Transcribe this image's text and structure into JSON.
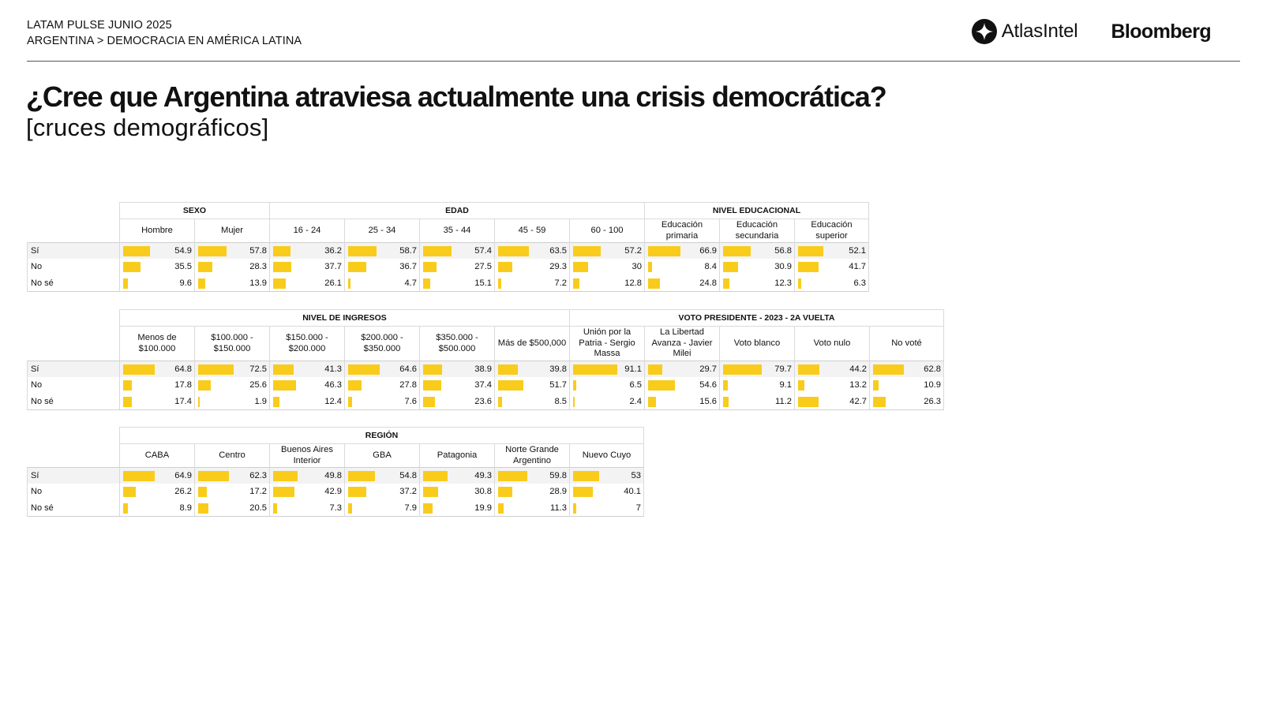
{
  "header": {
    "line1": "LATAM PULSE JUNIO 2025",
    "line2": "ARGENTINA > DEMOCRACIA EN AMÉRICA LATINA",
    "logo_atlas": "AtlasIntel",
    "logo_bloomberg": "Bloomberg"
  },
  "title": "¿Cree que Argentina atraviesa actualmente una crisis democrática?",
  "subtitle": "[cruces demográficos]",
  "colors": {
    "bar": "#f9cc1b",
    "rule": "#555555",
    "border": "#dadada"
  },
  "chart_data": [
    {
      "type": "bar",
      "orientation": "horizontal-in-table",
      "value_range": [
        0,
        100
      ],
      "rows": [
        "Sí",
        "No",
        "No sé"
      ],
      "groups": [
        {
          "name": "SEXO",
          "columns": [
            {
              "label": "Hombre",
              "values": [
                54.9,
                35.5,
                9.6
              ]
            },
            {
              "label": "Mujer",
              "values": [
                57.8,
                28.3,
                13.9
              ]
            }
          ]
        },
        {
          "name": "EDAD",
          "columns": [
            {
              "label": "16 - 24",
              "values": [
                36.2,
                37.7,
                26.1
              ]
            },
            {
              "label": "25 - 34",
              "values": [
                58.7,
                36.7,
                4.7
              ]
            },
            {
              "label": "35 - 44",
              "values": [
                57.4,
                27.5,
                15.1
              ]
            },
            {
              "label": "45 - 59",
              "values": [
                63.5,
                29.3,
                7.2
              ]
            },
            {
              "label": "60 - 100",
              "values": [
                57.2,
                30,
                12.8
              ]
            }
          ]
        },
        {
          "name": "NIVEL EDUCACIONAL",
          "columns": [
            {
              "label": "Educación primaria",
              "values": [
                66.9,
                8.4,
                24.8
              ]
            },
            {
              "label": "Educación secundaria",
              "values": [
                56.8,
                30.9,
                12.3
              ]
            },
            {
              "label": "Educación superior",
              "values": [
                52.1,
                41.7,
                6.3
              ]
            }
          ]
        }
      ]
    },
    {
      "type": "bar",
      "orientation": "horizontal-in-table",
      "value_range": [
        0,
        100
      ],
      "rows": [
        "Sí",
        "No",
        "No sé"
      ],
      "groups": [
        {
          "name": "NIVEL DE INGRESOS",
          "columns": [
            {
              "label": "Menos de $100.000",
              "values": [
                64.8,
                17.8,
                17.4
              ]
            },
            {
              "label": "$100.000 - $150.000",
              "values": [
                72.5,
                25.6,
                1.9
              ]
            },
            {
              "label": "$150.000 - $200.000",
              "values": [
                41.3,
                46.3,
                12.4
              ]
            },
            {
              "label": "$200.000 - $350.000",
              "values": [
                64.6,
                27.8,
                7.6
              ]
            },
            {
              "label": "$350.000 - $500.000",
              "values": [
                38.9,
                37.4,
                23.6
              ]
            },
            {
              "label": "Más de $500,000",
              "values": [
                39.8,
                51.7,
                8.5
              ]
            }
          ]
        },
        {
          "name": "VOTO PRESIDENTE - 2023 - 2A VUELTA",
          "columns": [
            {
              "label": "Unión por la Patria - Sergio Massa",
              "values": [
                91.1,
                6.5,
                2.4
              ]
            },
            {
              "label": "La Libertad Avanza - Javier Milei",
              "values": [
                29.7,
                54.6,
                15.6
              ]
            },
            {
              "label": "Voto blanco",
              "values": [
                79.7,
                9.1,
                11.2
              ]
            },
            {
              "label": "Voto nulo",
              "values": [
                44.2,
                13.2,
                42.7
              ]
            },
            {
              "label": "No voté",
              "values": [
                62.8,
                10.9,
                26.3
              ]
            }
          ]
        }
      ]
    },
    {
      "type": "bar",
      "orientation": "horizontal-in-table",
      "value_range": [
        0,
        100
      ],
      "rows": [
        "Sí",
        "No",
        "No sé"
      ],
      "groups": [
        {
          "name": "REGIÓN",
          "columns": [
            {
              "label": "CABA",
              "values": [
                64.9,
                26.2,
                8.9
              ]
            },
            {
              "label": "Centro",
              "values": [
                62.3,
                17.2,
                20.5
              ]
            },
            {
              "label": "Buenos Aires Interior",
              "values": [
                49.8,
                42.9,
                7.3
              ]
            },
            {
              "label": "GBA",
              "values": [
                54.8,
                37.2,
                7.9
              ]
            },
            {
              "label": "Patagonia",
              "values": [
                49.3,
                30.8,
                19.9
              ]
            },
            {
              "label": "Norte Grande Argentino",
              "values": [
                59.8,
                28.9,
                11.3
              ]
            },
            {
              "label": "Nuevo Cuyo",
              "values": [
                53,
                40.1,
                7
              ]
            }
          ]
        }
      ]
    }
  ]
}
